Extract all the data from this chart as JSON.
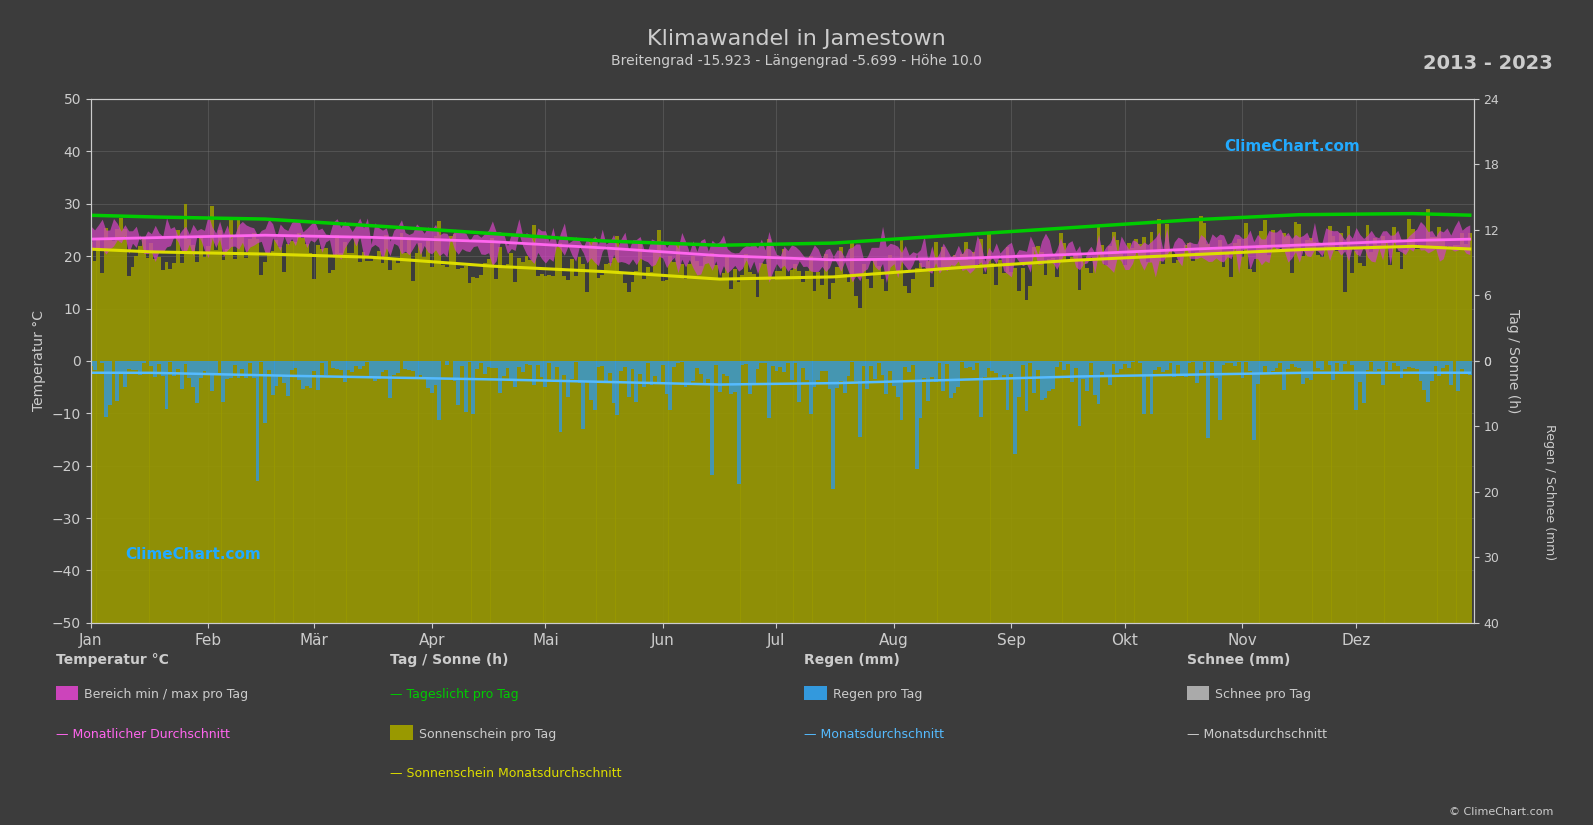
{
  "title": "Klimawandel in Jamestown",
  "subtitle": "Breitengrad -15.923 - Längengrad -5.699 - Höhe 10.0",
  "year_range": "2013 - 2023",
  "background_color": "#3c3c3c",
  "grid_color": "#777777",
  "text_color": "#cccccc",
  "left_ylim": [
    -50,
    50
  ],
  "x_months": [
    "Jan",
    "Feb",
    "Mär",
    "Apr",
    "Mai",
    "Jun",
    "Jul",
    "Aug",
    "Sep",
    "Okt",
    "Nov",
    "Dez"
  ],
  "month_starts_day": [
    0,
    31,
    59,
    90,
    120,
    151,
    181,
    212,
    243,
    273,
    304,
    334
  ],
  "month_centers_day": [
    15,
    46,
    74,
    105,
    135,
    166,
    196,
    227,
    258,
    289,
    319,
    349
  ],
  "temp_max_monthly": [
    25.5,
    25.8,
    25.4,
    24.5,
    23.3,
    21.8,
    21.0,
    21.2,
    22.0,
    23.0,
    23.8,
    24.8
  ],
  "temp_min_monthly": [
    21.5,
    22.0,
    21.8,
    21.0,
    19.8,
    18.3,
    17.5,
    17.8,
    18.5,
    19.5,
    20.3,
    21.0
  ],
  "temp_avg_monthly": [
    23.5,
    24.0,
    23.6,
    22.8,
    21.6,
    20.1,
    19.3,
    19.5,
    20.3,
    21.3,
    22.1,
    23.0
  ],
  "sunshine_daily_avg_monthly": [
    10.5,
    10.2,
    9.8,
    9.0,
    8.5,
    7.8,
    8.0,
    8.8,
    9.5,
    10.0,
    10.5,
    10.8
  ],
  "sunshine_mavg_monthly": [
    10.0,
    9.8,
    9.5,
    8.7,
    8.2,
    7.5,
    7.7,
    8.5,
    9.2,
    9.7,
    10.2,
    10.5
  ],
  "daylight_monthly": [
    13.2,
    13.0,
    12.4,
    11.7,
    11.0,
    10.6,
    10.8,
    11.5,
    12.2,
    12.9,
    13.4,
    13.5
  ],
  "rain_daily_avg_monthly": [
    2.0,
    2.5,
    2.8,
    3.0,
    3.5,
    4.0,
    3.8,
    3.2,
    2.7,
    2.3,
    2.0,
    2.0
  ],
  "rain_mavg_monthly": [
    1.8,
    2.2,
    2.5,
    2.8,
    3.2,
    3.6,
    3.4,
    2.9,
    2.4,
    2.1,
    1.8,
    1.8
  ],
  "sun_axis_max": 24,
  "rain_axis_max": 40,
  "colors": {
    "temp_fill": "#cc44bb",
    "temp_line": "#ff66ee",
    "sunshine_fill": "#999900",
    "sunshine_line": "#dddd00",
    "daylight_line": "#00cc00",
    "rain_fill": "#3399dd",
    "rain_line": "#55bbff",
    "snow_fill": "#aaaaaa",
    "snow_line": "#cccccc"
  },
  "legend": {
    "col1_title": "Temperatur °C",
    "col1_item1": "Bereich min / max pro Tag",
    "col1_item2": "Monatlicher Durchschnitt",
    "col2_title": "Tag / Sonne (h)",
    "col2_item1": "Tageslicht pro Tag",
    "col2_item2": "Sonnenschein pro Tag",
    "col2_item3": "Sonnenschein Monatsdurchschnitt",
    "col3_title": "Regen (mm)",
    "col3_item1": "Regen pro Tag",
    "col3_item2": "Monatsdurchschnitt",
    "col4_title": "Schnee (mm)",
    "col4_item1": "Schnee pro Tag",
    "col4_item2": "Monatsdurchschnitt"
  }
}
